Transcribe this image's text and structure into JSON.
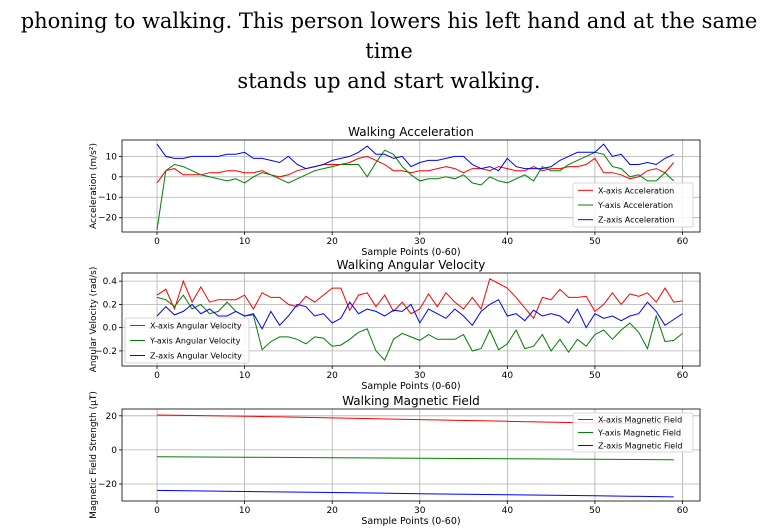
{
  "caption": {
    "line1": "phoning to walking. This person lowers his left hand and at the same time",
    "line2": "stands up and start walking."
  },
  "chart_data": [
    {
      "type": "line",
      "title": "Walking Acceleration",
      "xlabel": "Sample Points (0-60)",
      "ylabel": "Acceleration (m/s²)",
      "xlim": [
        -4,
        62
      ],
      "ylim": [
        -27,
        18
      ],
      "xticks": [
        "0",
        "10",
        "20",
        "30",
        "40",
        "50",
        "60"
      ],
      "yticks": [
        "−20",
        "−10",
        "0",
        "10"
      ],
      "grid": true,
      "legend": "lower-right",
      "series": [
        {
          "name": "X-axis Acceleration",
          "color": "#ff0000",
          "values": [
            -3,
            3,
            4,
            1,
            1,
            1,
            2,
            2,
            3,
            3,
            2,
            2,
            3,
            1,
            0,
            1,
            3,
            4,
            5,
            6,
            6,
            6,
            7,
            9,
            10,
            8,
            6,
            3,
            3,
            2,
            3,
            3,
            4,
            5,
            4,
            2,
            4,
            4,
            3,
            5,
            4,
            3,
            3,
            5,
            3,
            4,
            4,
            5,
            5,
            6,
            9,
            2,
            2,
            1,
            -1,
            0,
            3,
            4,
            2,
            7
          ]
        },
        {
          "name": "Y-axis Acceleration",
          "color": "#008000",
          "values": [
            -26,
            3,
            6,
            5,
            3,
            1,
            0,
            -1,
            -2,
            -1,
            -3,
            0,
            2,
            1,
            -1,
            -3,
            -1,
            1,
            3,
            4,
            5,
            6,
            6,
            6,
            0,
            7,
            13,
            11,
            5,
            1,
            -2,
            -1,
            -1,
            0,
            -1,
            1,
            -3,
            -4,
            0,
            -2,
            -3,
            -1,
            1,
            -2,
            5,
            3,
            3,
            6,
            8,
            10,
            12,
            11,
            5,
            4,
            0,
            1,
            -2,
            -2,
            2,
            -2
          ]
        },
        {
          "name": "Z-axis Acceleration",
          "color": "#0000ff",
          "values": [
            16,
            10,
            9,
            9,
            10,
            10,
            10,
            10,
            11,
            11,
            12,
            9,
            9,
            8,
            7,
            10,
            6,
            4,
            5,
            6,
            8,
            9,
            10,
            12,
            15,
            11,
            11,
            9,
            10,
            5,
            7,
            8,
            8,
            9,
            10,
            10,
            6,
            4,
            5,
            3,
            9,
            5,
            4,
            4,
            4,
            5,
            8,
            10,
            12,
            12,
            12,
            16,
            10,
            11,
            6,
            6,
            7,
            6,
            9,
            11
          ]
        }
      ]
    },
    {
      "type": "line",
      "title": "Walking Angular Velocity",
      "xlabel": "Sample Points (0-60)",
      "ylabel": "Angular Velocity (rad/s)",
      "xlim": [
        -4,
        62
      ],
      "ylim": [
        -0.33,
        0.47
      ],
      "xticks": [
        "0",
        "10",
        "20",
        "30",
        "40",
        "50",
        "60"
      ],
      "yticks": [
        "−0.2",
        "0.0",
        "0.2",
        "0.4"
      ],
      "grid": true,
      "legend": "lower-left",
      "series": [
        {
          "name": "X-axis Angular Velocity",
          "color": "#ff0000",
          "values": [
            0.28,
            0.33,
            0.16,
            0.4,
            0.22,
            0.35,
            0.22,
            0.24,
            0.24,
            0.24,
            0.28,
            0.16,
            0.3,
            0.26,
            0.26,
            0.2,
            0.18,
            0.27,
            0.22,
            0.28,
            0.34,
            0.34,
            0.15,
            0.28,
            0.3,
            0.18,
            0.28,
            0.14,
            0.22,
            0.12,
            0.16,
            0.29,
            0.18,
            0.3,
            0.22,
            0.16,
            0.26,
            0.16,
            0.42,
            0.38,
            0.34,
            0.26,
            0.17,
            0.08,
            0.26,
            0.24,
            0.33,
            0.26,
            0.26,
            0.27,
            0.14,
            0.2,
            0.3,
            0.2,
            0.29,
            0.27,
            0.3,
            0.22,
            0.34,
            0.22,
            0.23
          ]
        },
        {
          "name": "Y-axis Angular Velocity",
          "color": "#008000",
          "values": [
            0.26,
            0.24,
            0.18,
            0.28,
            0.16,
            0.2,
            0.12,
            0.14,
            0.22,
            0.14,
            0.1,
            0.11,
            -0.19,
            -0.12,
            -0.08,
            -0.08,
            -0.1,
            -0.14,
            -0.08,
            -0.09,
            -0.16,
            -0.15,
            -0.1,
            -0.04,
            -0.01,
            -0.2,
            -0.28,
            -0.1,
            -0.05,
            -0.08,
            -0.11,
            -0.06,
            -0.1,
            -0.1,
            -0.1,
            -0.06,
            -0.2,
            -0.18,
            -0.02,
            -0.19,
            -0.14,
            -0.02,
            -0.18,
            -0.16,
            -0.06,
            -0.2,
            -0.1,
            -0.21,
            -0.1,
            -0.16,
            -0.06,
            -0.02,
            -0.1,
            -0.02,
            0.04,
            -0.04,
            -0.18,
            0.1,
            -0.12,
            -0.11,
            -0.05
          ]
        },
        {
          "name": "Z-axis Angular Velocity",
          "color": "#0000ff",
          "values": [
            0.1,
            0.18,
            0.11,
            0.14,
            0.2,
            0.12,
            0.16,
            0.1,
            0.1,
            0.14,
            0.1,
            0.12,
            -0.01,
            0.14,
            0.02,
            0.1,
            0.2,
            0.18,
            0.1,
            0.12,
            0.04,
            0.08,
            0.22,
            0.12,
            0.16,
            0.14,
            0.1,
            0.15,
            0.14,
            0.2,
            0.04,
            0.16,
            0.12,
            0.08,
            0.16,
            0.1,
            0.02,
            0.14,
            0.2,
            0.24,
            0.1,
            0.12,
            0.06,
            0.15,
            0.1,
            0.12,
            0.1,
            0.04,
            0.16,
            0.0,
            0.12,
            0.08,
            0.1,
            0.06,
            0.1,
            0.12,
            0.22,
            0.14,
            0.02,
            0.07,
            0.12
          ]
        }
      ]
    },
    {
      "type": "line",
      "title": "Walking Magnetic Field",
      "xlabel": "Sample Points (0-60)",
      "ylabel": "Magnetic Field Strength (µT)",
      "xlim": [
        -4,
        62
      ],
      "ylim": [
        -30,
        24
      ],
      "xticks": [
        "0",
        "10",
        "20",
        "30",
        "40",
        "50",
        "60"
      ],
      "yticks": [
        "−20",
        "0",
        "20"
      ],
      "grid": true,
      "legend": "upper-right",
      "series": [
        {
          "name": "X-axis Magnetic Field",
          "color": "#ff0000",
          "points": [
            [
              0,
              20.5
            ],
            [
              10,
              19.8
            ],
            [
              20,
              18.8
            ],
            [
              30,
              17.8
            ],
            [
              40,
              16.8
            ],
            [
              50,
              15.8
            ],
            [
              59,
              15.2
            ]
          ]
        },
        {
          "name": "Y-axis Magnetic Field",
          "color": "#008000",
          "points": [
            [
              0,
              -4.0
            ],
            [
              10,
              -4.3
            ],
            [
              20,
              -4.6
            ],
            [
              30,
              -4.9
            ],
            [
              40,
              -5.2
            ],
            [
              50,
              -5.5
            ],
            [
              59,
              -5.8
            ]
          ]
        },
        {
          "name": "Z-axis Magnetic Field",
          "color": "#0000ff",
          "points": [
            [
              0,
              -23.8
            ],
            [
              10,
              -24.4
            ],
            [
              20,
              -25.0
            ],
            [
              30,
              -25.7
            ],
            [
              40,
              -26.3
            ],
            [
              50,
              -26.9
            ],
            [
              59,
              -27.6
            ]
          ]
        }
      ]
    }
  ]
}
